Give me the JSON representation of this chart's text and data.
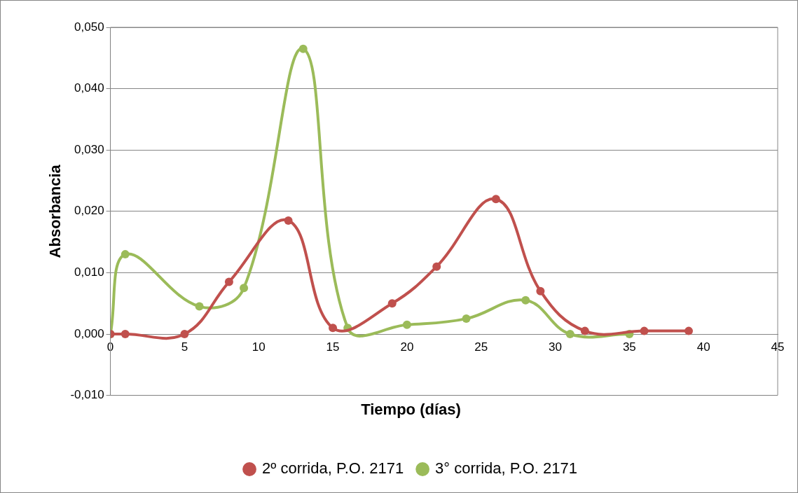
{
  "chart_data": {
    "type": "line",
    "xlabel": "Tiempo (días)",
    "ylabel": "Absorbancia",
    "xlim": [
      0,
      45
    ],
    "xticks": [
      0,
      5,
      10,
      15,
      20,
      25,
      30,
      35,
      40,
      45
    ],
    "ylim": [
      -0.01,
      0.05
    ],
    "yticks": [
      {
        "value": -0.01,
        "label": "-0,010"
      },
      {
        "value": 0,
        "label": "0,000"
      },
      {
        "value": 0.01,
        "label": "0,010"
      },
      {
        "value": 0.02,
        "label": "0,020"
      },
      {
        "value": 0.03,
        "label": "0,030"
      },
      {
        "value": 0.04,
        "label": "0,040"
      },
      {
        "value": 0.05,
        "label": "0,050"
      }
    ],
    "grid": "y",
    "legend": "bottom",
    "marker": "circle",
    "line_style": "solid",
    "series": [
      {
        "name": "2º corrida, P.O. 2171",
        "color": "#c0504d",
        "x": [
          0,
          1,
          5,
          8,
          12,
          15,
          19,
          22,
          26,
          29,
          32,
          36,
          39
        ],
        "values": [
          0,
          0,
          0,
          0.0085,
          0.0185,
          0.001,
          0.005,
          0.011,
          0.022,
          0.007,
          0.0005,
          0.0005,
          0.0005
        ]
      },
      {
        "name": "3° corrida, P.O. 2171",
        "color": "#9bbb59",
        "x": [
          0,
          1,
          6,
          9,
          13,
          16,
          20,
          24,
          28,
          31,
          35
        ],
        "values": [
          0,
          0.013,
          0.0045,
          0.0075,
          0.0465,
          0.001,
          0.0015,
          0.0025,
          0.0055,
          0,
          0
        ]
      }
    ]
  }
}
